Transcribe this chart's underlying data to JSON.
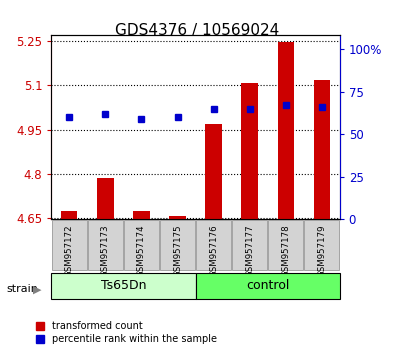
{
  "title": "GDS4376 / 10569024",
  "samples": [
    "GSM957172",
    "GSM957173",
    "GSM957174",
    "GSM957175",
    "GSM957176",
    "GSM957177",
    "GSM957178",
    "GSM957179"
  ],
  "red_values": [
    4.673,
    4.787,
    4.673,
    4.658,
    4.97,
    5.108,
    5.248,
    5.12
  ],
  "blue_values": [
    60,
    62,
    59,
    60,
    65,
    65,
    67,
    66
  ],
  "bar_baseline": 4.645,
  "ylim_left": [
    4.645,
    5.27
  ],
  "ylim_right": [
    0,
    108
  ],
  "yticks_left": [
    4.65,
    4.8,
    4.95,
    5.1,
    5.25
  ],
  "yticks_right": [
    0,
    25,
    50,
    75,
    100
  ],
  "ytick_labels_left": [
    "4.65",
    "4.8",
    "4.95",
    "5.1",
    "5.25"
  ],
  "ytick_labels_right": [
    "0",
    "25",
    "50",
    "75",
    "100%"
  ],
  "group1_label": "Ts65Dn",
  "group2_label": "control",
  "strain_label": "strain",
  "legend_red": "transformed count",
  "legend_blue": "percentile rank within the sample",
  "bar_color": "#CC0000",
  "dot_color": "#0000CC",
  "group1_color": "#CCFFCC",
  "group2_color": "#66FF66",
  "bar_bg_color": "#D3D3D3",
  "title_fontsize": 11,
  "tick_fontsize": 8.5,
  "bar_width": 0.45
}
